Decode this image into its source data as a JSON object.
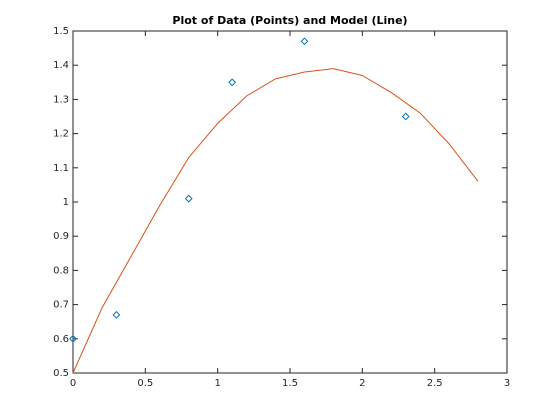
{
  "chart_data": {
    "type": "line",
    "title": "Plot of Data (Points) and Model (Line)",
    "xlim": [
      0,
      3
    ],
    "xticks": [
      0,
      0.5,
      1,
      1.5,
      2,
      2.5,
      3
    ],
    "ylim": [
      0.5,
      1.5
    ],
    "yticks": [
      0.5,
      0.6,
      0.7,
      0.8,
      0.9,
      1,
      1.1,
      1.2,
      1.3,
      1.4,
      1.5
    ],
    "grid": false,
    "box": true,
    "series": [
      {
        "marker": "diamond",
        "line": false,
        "color": "#0072bd",
        "x": [
          0,
          0.3,
          0.8,
          1.1,
          1.6,
          2.3
        ],
        "values": [
          0.6,
          0.67,
          1.01,
          1.35,
          1.47,
          1.25
        ]
      },
      {
        "marker": "none",
        "line": true,
        "color": "#d95319",
        "x": [
          0,
          0.2,
          0.4,
          0.6,
          0.8,
          1.0,
          1.2,
          1.4,
          1.6,
          1.8,
          2.0,
          2.2,
          2.4,
          2.6,
          2.8
        ],
        "values": [
          0.5,
          0.69,
          0.84,
          0.99,
          1.13,
          1.23,
          1.31,
          1.36,
          1.38,
          1.39,
          1.37,
          1.32,
          1.26,
          1.17,
          1.06
        ]
      }
    ]
  }
}
